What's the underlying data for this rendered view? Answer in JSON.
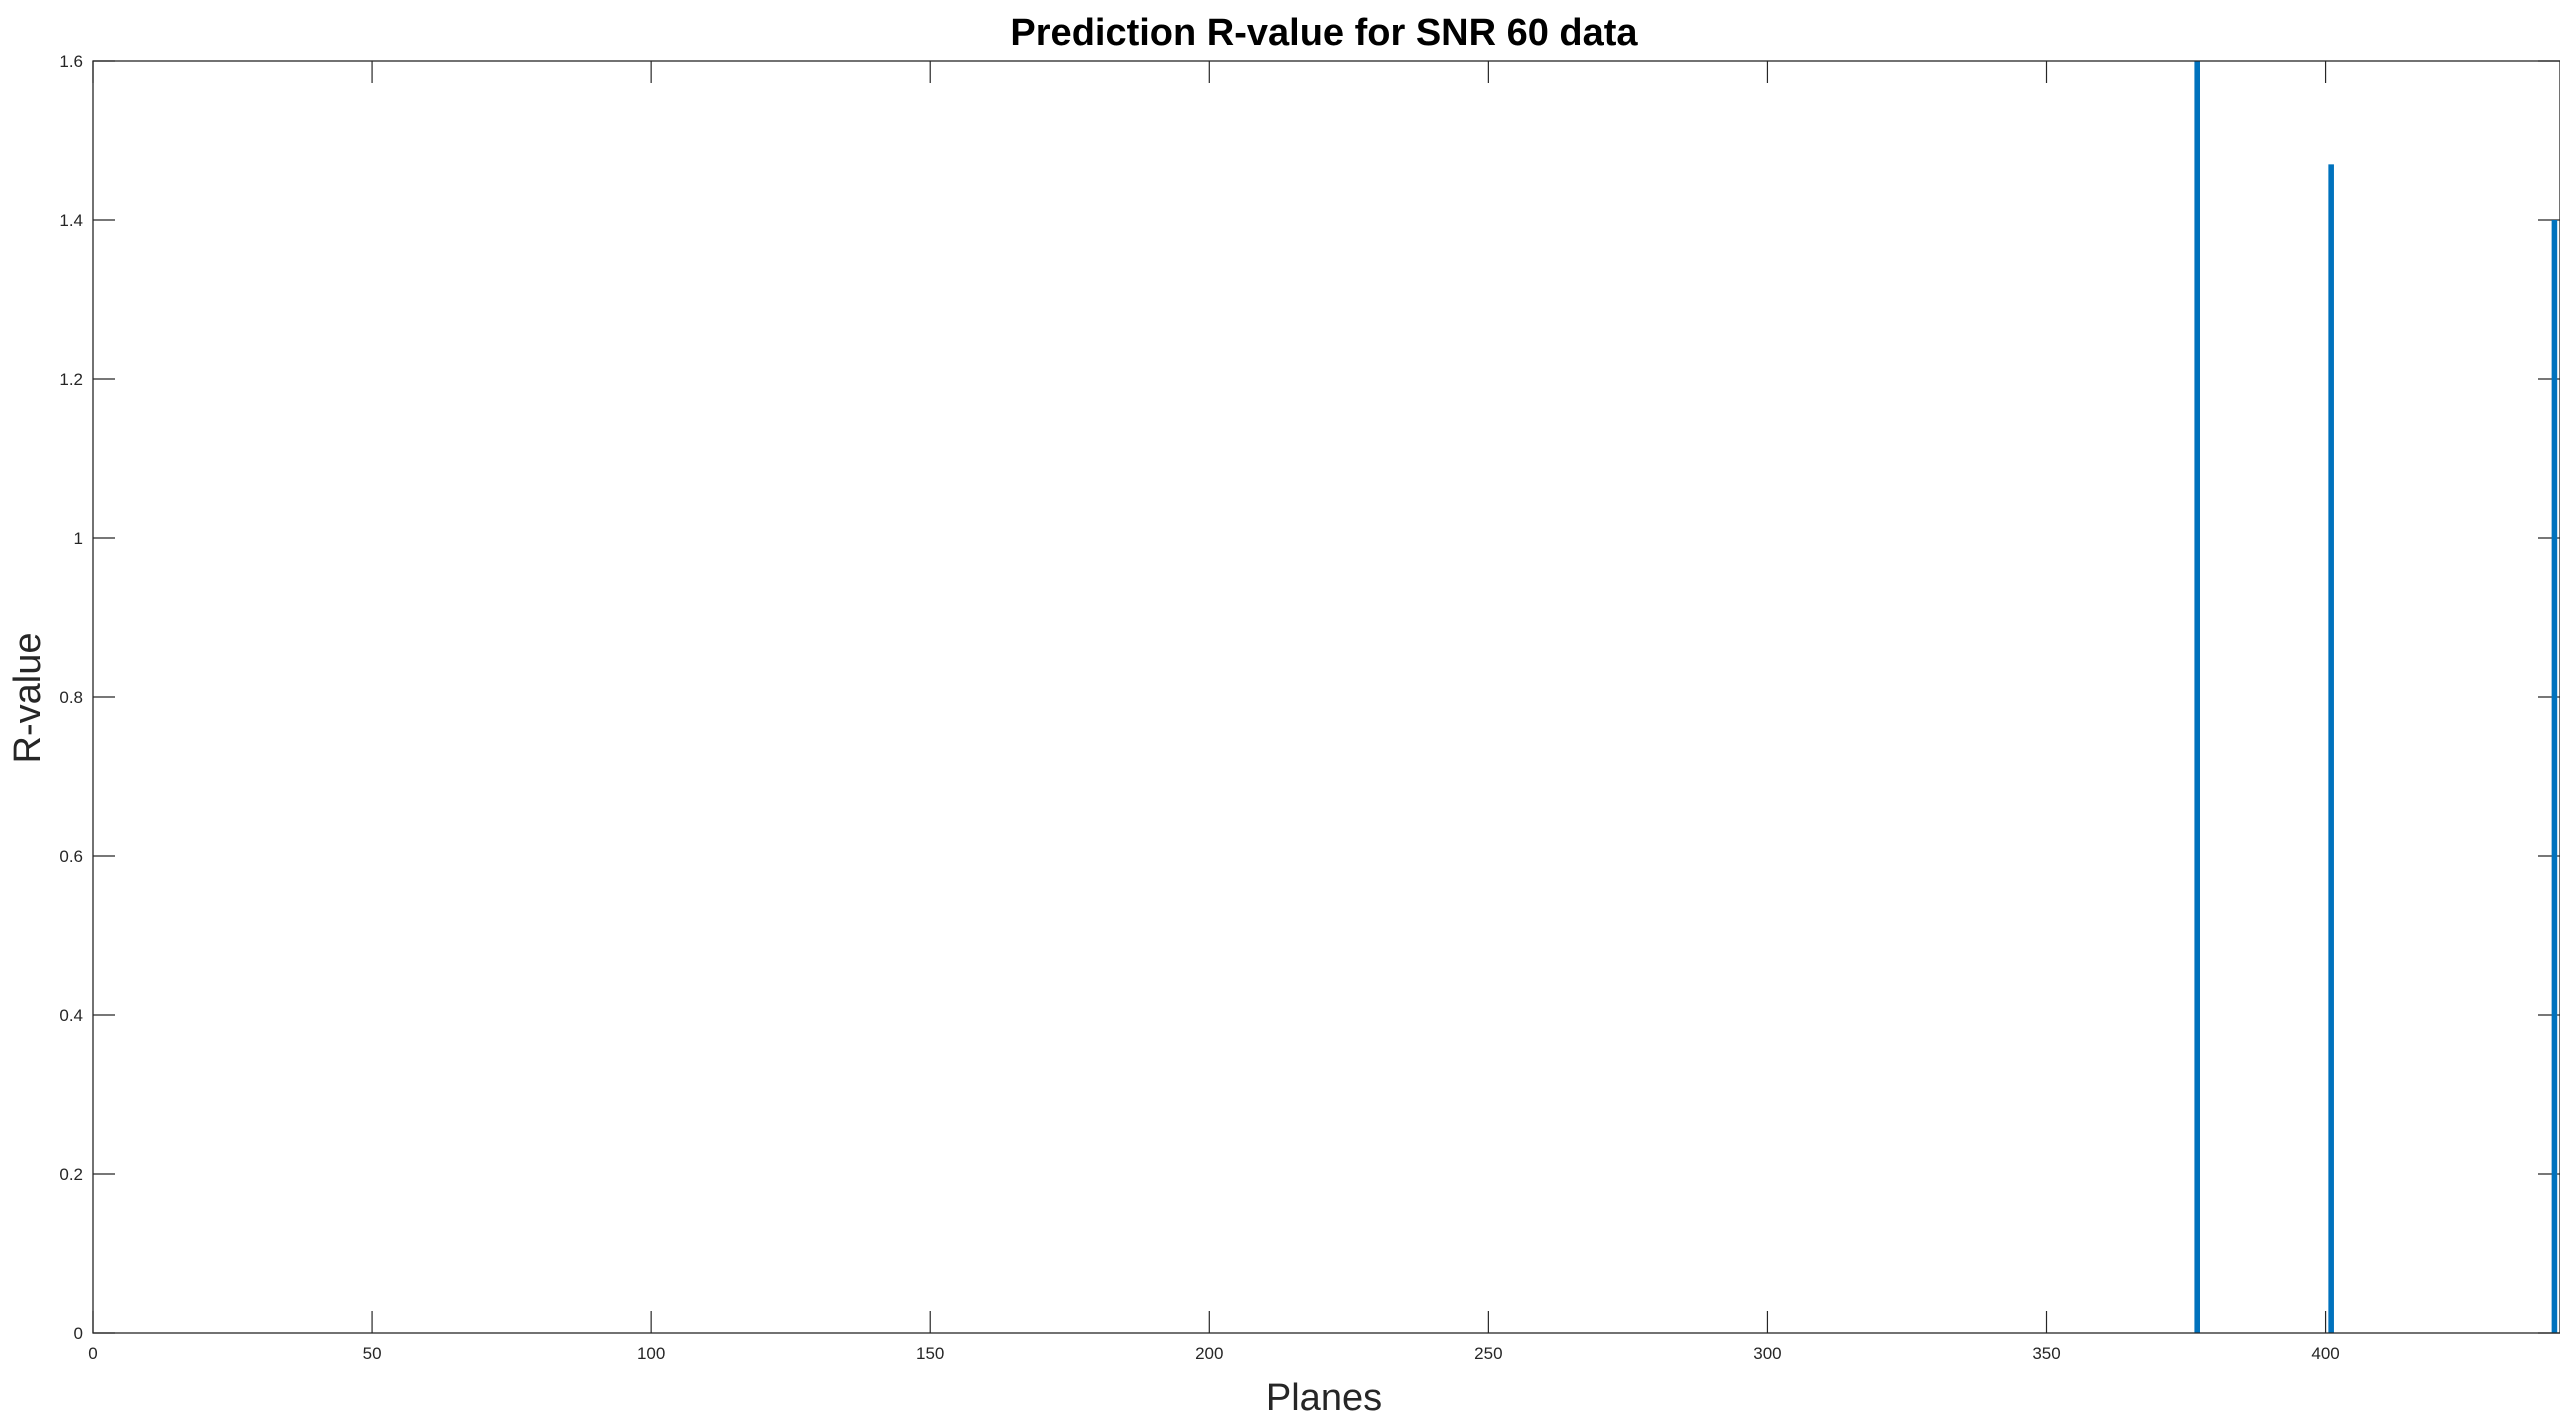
{
  "chart_data": {
    "type": "bar",
    "title": "Prediction R-value for SNR 60 data",
    "xlabel": "Planes",
    "ylabel": "R-value",
    "xlim": [
      0,
      442
    ],
    "ylim": [
      0,
      1.6
    ],
    "xticks": [
      0,
      50,
      100,
      150,
      200,
      250,
      300,
      350,
      400
    ],
    "yticks": [
      0,
      0.2,
      0.4,
      0.6,
      0.8,
      1,
      1.2,
      1.4,
      1.6
    ],
    "ytick_labels": [
      "0",
      "0.2",
      "0.4",
      "0.6",
      "0.8",
      "1",
      "1.2",
      "1.4",
      "1.6"
    ],
    "bar_width": 2,
    "grid": false,
    "legend": false,
    "bar_color": "#0072BD",
    "axis_color": "#262626",
    "series": [
      {
        "x": [
          377,
          401,
          441
        ],
        "values": [
          1.6,
          1.47,
          1.4
        ]
      }
    ]
  }
}
